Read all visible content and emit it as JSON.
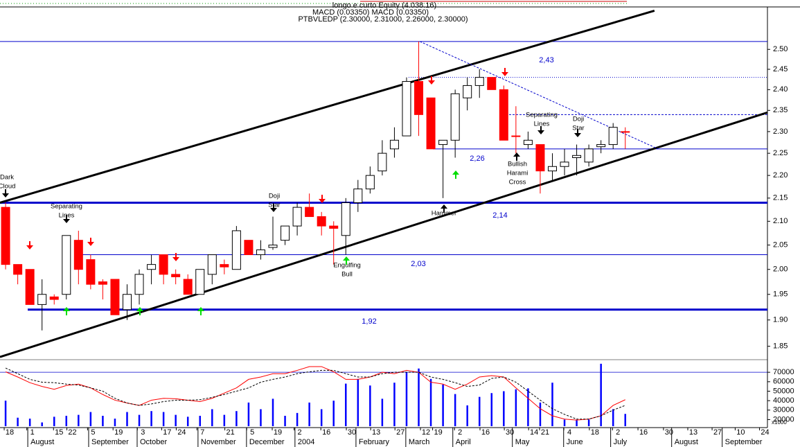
{
  "header": {
    "lines": [
      "longo e curto Equity (4.038.16)",
      "MACD (0.03350) MACD (0.03350)",
      "PTBVLEDP (2.30000, 2.31000, 2.26000, 2.30000)"
    ]
  },
  "chart_data": [
    {
      "type": "candlestick",
      "open": [
        2.13,
        2.01,
        2.0,
        1.93,
        1.945,
        1.95,
        2.06,
        2.02,
        1.975,
        1.98,
        1.92,
        1.95,
        2.0,
        2.03,
        1.99,
        1.98,
        1.95,
        1.99,
        2.01,
        2.0,
        2.06,
        2.03,
        2.045,
        2.06,
        2.09,
        2.13,
        2.11,
        2.09,
        2.07,
        2.14,
        2.17,
        2.21,
        2.26,
        2.29,
        2.42,
        2.38,
        2.27,
        2.28,
        2.38,
        2.41,
        2.43,
        2.4,
        2.29,
        2.27,
        2.27,
        2.21,
        2.22,
        2.24,
        2.23,
        2.265,
        2.27,
        2.3
      ],
      "high": [
        2.14,
        2.01,
        2.0,
        1.98,
        1.95,
        2.07,
        2.08,
        2.03,
        1.98,
        1.98,
        1.97,
        2.0,
        2.03,
        2.03,
        2.0,
        1.99,
        2.0,
        2.03,
        2.02,
        2.09,
        2.06,
        2.06,
        2.11,
        2.09,
        2.14,
        2.16,
        2.12,
        2.1,
        2.15,
        2.19,
        2.22,
        2.28,
        2.31,
        2.43,
        2.52,
        2.38,
        2.28,
        2.4,
        2.43,
        2.45,
        2.43,
        2.41,
        2.36,
        2.3,
        2.27,
        2.25,
        2.26,
        2.27,
        2.27,
        2.28,
        2.32,
        2.31
      ],
      "low": [
        2.0,
        1.97,
        1.93,
        1.88,
        1.93,
        1.94,
        1.97,
        1.96,
        1.94,
        1.91,
        1.9,
        1.93,
        1.97,
        1.97,
        1.97,
        1.95,
        1.95,
        1.97,
        1.99,
        2.0,
        2.03,
        2.02,
        2.04,
        2.05,
        2.07,
        2.11,
        2.07,
        2.01,
        2.03,
        2.12,
        2.16,
        2.2,
        2.24,
        2.29,
        2.29,
        2.26,
        2.15,
        2.24,
        2.35,
        2.38,
        2.4,
        2.28,
        2.25,
        2.26,
        2.16,
        2.19,
        2.2,
        2.2,
        2.22,
        2.25,
        2.26,
        2.26
      ],
      "close": [
        2.01,
        1.99,
        1.93,
        1.95,
        1.94,
        2.07,
        2.0,
        1.97,
        1.97,
        1.91,
        1.95,
        1.99,
        2.01,
        1.99,
        1.985,
        1.95,
        2.0,
        2.03,
        2.005,
        2.08,
        2.03,
        2.04,
        2.05,
        2.09,
        2.13,
        2.11,
        2.09,
        2.085,
        2.14,
        2.17,
        2.2,
        2.25,
        2.28,
        2.42,
        2.34,
        2.26,
        2.28,
        2.39,
        2.41,
        2.43,
        2.4,
        2.28,
        2.29,
        2.28,
        2.21,
        2.22,
        2.23,
        2.245,
        2.26,
        2.27,
        2.31,
        2.3
      ],
      "up_color": "#ffffff",
      "down_color": "#ff0000",
      "xlim": [
        -0.46,
        62.7
      ],
      "ylim": [
        1.825,
        2.61
      ],
      "log_scale": true,
      "yticks": [
        {
          "value": 1.85,
          "label": "1.85"
        },
        {
          "value": 1.9,
          "label": "1.90"
        },
        {
          "value": 1.95,
          "label": "1.95"
        },
        {
          "value": 2.0,
          "label": "2.00"
        },
        {
          "value": 2.05,
          "label": "2.05"
        },
        {
          "value": 2.1,
          "label": "2.10"
        },
        {
          "value": 2.15,
          "label": "2.15"
        },
        {
          "value": 2.2,
          "label": "2.20"
        },
        {
          "value": 2.25,
          "label": "2.25"
        },
        {
          "value": 2.3,
          "label": "2.30"
        },
        {
          "value": 2.35,
          "label": "2.35"
        },
        {
          "value": 2.4,
          "label": "2.40"
        },
        {
          "value": 2.45,
          "label": "2.45"
        },
        {
          "value": 2.5,
          "label": "2.50"
        }
      ],
      "levels": [
        {
          "value": 2.52,
          "style": "thin"
        },
        {
          "value": 2.43,
          "label": "2,43",
          "style": "dotted"
        },
        {
          "value": 2.34,
          "style": "dashed"
        },
        {
          "value": 2.26,
          "label": "2,26",
          "style": "thin"
        },
        {
          "value": 2.14,
          "label": "2,14",
          "style": "thick"
        },
        {
          "value": 2.03,
          "label": "2,03",
          "style": "thin"
        },
        {
          "value": 1.92,
          "label": "1,92",
          "style": "thick"
        }
      ],
      "level_color": "#0000cc",
      "trendlines": [
        {
          "x": [
            -0.46,
            53.4
          ],
          "y": [
            2.14,
            2.6
          ],
          "color": "#000000",
          "style": "thick"
        },
        {
          "x": [
            -0.46,
            62.7
          ],
          "y": [
            1.83,
            2.345
          ],
          "color": "#000000",
          "style": "thick"
        },
        {
          "x": [
            34.1,
            53.7
          ],
          "y": [
            2.52,
            2.26
          ],
          "color": "#0000cc",
          "style": "dashed"
        }
      ],
      "annotations": [
        {
          "text": [
            "Dark",
            "Cloud"
          ]
        },
        {
          "text": [
            "Separating",
            "Lines"
          ]
        },
        {
          "text": [
            "Doji",
            "Star"
          ]
        },
        {
          "text": [
            "Engulfing",
            "Bull"
          ]
        },
        {
          "text": [
            "Hammer"
          ]
        },
        {
          "text": [
            "Bullish",
            "Harami",
            "Cross"
          ]
        },
        {
          "text": [
            "Separating",
            "Lines"
          ]
        },
        {
          "text": [
            "Doji",
            "Star"
          ]
        }
      ]
    },
    {
      "type": "volume",
      "values": [
        40000,
        22000,
        21000,
        17000,
        23000,
        24000,
        25000,
        28000,
        24000,
        21000,
        28000,
        25000,
        29000,
        28000,
        25000,
        23000,
        24000,
        31000,
        25000,
        29000,
        38000,
        31000,
        42000,
        24000,
        27000,
        38000,
        31000,
        40000,
        58000,
        63000,
        56000,
        42000,
        59000,
        70000,
        74000,
        63000,
        57000,
        47000,
        35000,
        44000,
        48000,
        50000,
        52000,
        53000,
        38000,
        59000,
        20000,
        20000,
        20000,
        79000,
        31000,
        26000
      ],
      "color": "#0000ff",
      "lines": [
        {
          "color": "#ff0000",
          "style": "solid",
          "values": [
            70500,
            65000,
            59000,
            55000,
            52000,
            56000,
            57500,
            53500,
            46500,
            40500,
            37500,
            35000,
            40500,
            42500,
            42000,
            40500,
            39000,
            42500,
            48000,
            53500,
            62500,
            65000,
            68500,
            68500,
            72000,
            76000,
            76000,
            70500,
            62500,
            62500,
            65000,
            70000,
            68500,
            72000,
            70000,
            59500,
            57500,
            52000,
            57500,
            65000,
            66500,
            65000,
            53500,
            42500,
            31500,
            24000,
            20500,
            19500,
            20500,
            24000,
            35000,
            41000
          ]
        },
        {
          "color": "#000000",
          "style": "dashed",
          "values": [
            74500,
            68500,
            62500,
            59500,
            59000,
            57500,
            56500,
            53500,
            50000,
            42500,
            37500,
            35000,
            36500,
            39000,
            40500,
            40500,
            41000,
            43500,
            46500,
            50000,
            53500,
            59500,
            62500,
            65000,
            68500,
            70500,
            72000,
            72000,
            68500,
            65000,
            65000,
            68500,
            70000,
            70000,
            70000,
            65000,
            62500,
            59000,
            55000,
            56500,
            63500,
            65000,
            59500,
            50000,
            40500,
            31500,
            25500,
            20500,
            20500,
            24000,
            30000,
            35000
          ]
        }
      ],
      "xlim": [
        -0.46,
        62.7
      ],
      "ylim": [
        13000,
        83300
      ],
      "yticks": [
        20000,
        30000,
        40000,
        50000,
        60000,
        70000
      ],
      "unit": "x1000",
      "xticks": [
        {
          "value": 0.34,
          "label": "18"
        },
        {
          "value": 2.2,
          "label": "1"
        },
        {
          "value": 4.4,
          "label": "15"
        },
        {
          "value": 5.5,
          "label": "22"
        },
        {
          "value": 7.2,
          "label": "5"
        },
        {
          "value": 9.3,
          "label": "19"
        },
        {
          "value": 11.3,
          "label": "3"
        },
        {
          "value": 13.3,
          "label": "17"
        },
        {
          "value": 14.5,
          "label": "24"
        },
        {
          "value": 16.2,
          "label": "7"
        },
        {
          "value": 18.5,
          "label": "21"
        },
        {
          "value": 20.3,
          "label": "5"
        },
        {
          "value": 22.4,
          "label": "19"
        },
        {
          "value": 24.2,
          "label": "2"
        },
        {
          "value": 26.4,
          "label": "16"
        },
        {
          "value": 28.5,
          "label": "30"
        },
        {
          "value": 30.5,
          "label": "13"
        },
        {
          "value": 32.5,
          "label": "27"
        },
        {
          "value": 34.6,
          "label": "12"
        },
        {
          "value": 35.6,
          "label": "19"
        },
        {
          "value": 37.4,
          "label": "2"
        },
        {
          "value": 39.5,
          "label": "16"
        },
        {
          "value": 41.5,
          "label": "30"
        },
        {
          "value": 43.5,
          "label": "14"
        },
        {
          "value": 44.4,
          "label": "21"
        },
        {
          "value": 46.4,
          "label": "4"
        },
        {
          "value": 48.5,
          "label": "18"
        },
        {
          "value": 50.4,
          "label": "2"
        },
        {
          "value": 52.5,
          "label": "16"
        },
        {
          "value": 54.6,
          "label": "30"
        },
        {
          "value": 56.6,
          "label": "13"
        },
        {
          "value": 58.6,
          "label": "27"
        },
        {
          "value": 60.5,
          "label": "10"
        },
        {
          "value": 62.5,
          "label": "24"
        }
      ],
      "month_ticks": [
        {
          "value": 1.94,
          "label": "August"
        },
        {
          "value": 6.95,
          "label": "September"
        },
        {
          "value": 10.94,
          "label": "October"
        },
        {
          "value": 15.95,
          "label": "November"
        },
        {
          "value": 19.94,
          "label": "December"
        },
        {
          "value": 23.93,
          "label": "2004"
        },
        {
          "value": 28.95,
          "label": "February"
        },
        {
          "value": 33.05,
          "label": "March"
        },
        {
          "value": 36.92,
          "label": "April"
        },
        {
          "value": 41.82,
          "label": "May"
        },
        {
          "value": 46.04,
          "label": "June"
        },
        {
          "value": 49.91,
          "label": "July"
        },
        {
          "value": 54.93,
          "label": "August"
        },
        {
          "value": 59.09,
          "label": "September"
        }
      ]
    }
  ]
}
